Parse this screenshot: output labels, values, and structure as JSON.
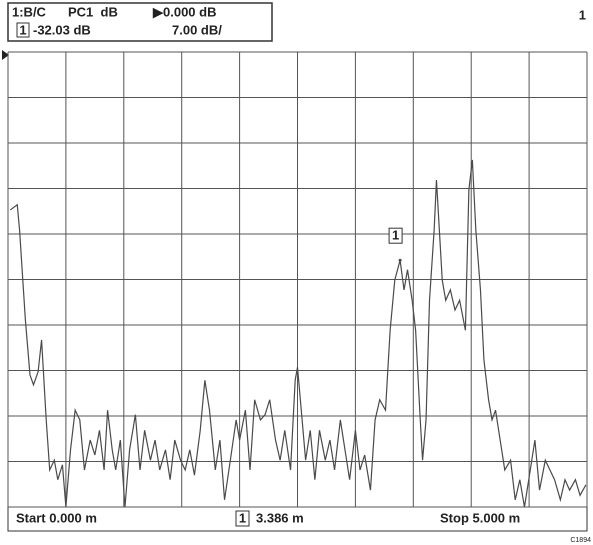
{
  "chart_data": {
    "type": "line",
    "header": {
      "channel": "1:B/C",
      "format": "PC1  dB",
      "reference": "▶0.000 dB",
      "marker_value": "-32.03 dB",
      "scale": "7.00 dB/"
    },
    "window_number": "1",
    "start": "Start 0.000 m",
    "marker_position": "3.386 m",
    "stop": "Stop 5.000 m",
    "figure_id": "C1894",
    "marker": {
      "label": "1",
      "x": 3.386,
      "value": -32.03
    },
    "color": "#4a4a4a",
    "grid": true,
    "xlim": [
      0,
      5
    ],
    "ylim": [
      -70,
      0
    ],
    "xticks": [
      0,
      0.5,
      1,
      1.5,
      2,
      2.5,
      3,
      3.5,
      4,
      4.5,
      5
    ],
    "yticks": [
      0,
      -7,
      -14,
      -21,
      -28,
      -35,
      -42,
      -49,
      -56,
      -63,
      -70
    ],
    "x": [
      0.02,
      0.08,
      0.1,
      0.15,
      0.19,
      0.22,
      0.26,
      0.29,
      0.33,
      0.36,
      0.4,
      0.43,
      0.47,
      0.5,
      0.54,
      0.58,
      0.62,
      0.66,
      0.71,
      0.75,
      0.79,
      0.83,
      0.86,
      0.9,
      0.93,
      0.97,
      1.01,
      1.05,
      1.1,
      1.14,
      1.18,
      1.23,
      1.27,
      1.31,
      1.36,
      1.4,
      1.44,
      1.49,
      1.53,
      1.57,
      1.61,
      1.66,
      1.7,
      1.74,
      1.79,
      1.83,
      1.87,
      1.92,
      1.97,
      2.0,
      2.05,
      2.09,
      2.13,
      2.18,
      2.22,
      2.26,
      2.31,
      2.35,
      2.39,
      2.44,
      2.48,
      2.5,
      2.54,
      2.57,
      2.61,
      2.65,
      2.69,
      2.74,
      2.78,
      2.82,
      2.87,
      2.91,
      2.95,
      3.0,
      3.04,
      3.08,
      3.13,
      3.17,
      3.21,
      3.26,
      3.3,
      3.34,
      3.386,
      3.42,
      3.45,
      3.49,
      3.52,
      3.56,
      3.58,
      3.61,
      3.64,
      3.68,
      3.7,
      3.75,
      3.78,
      3.82,
      3.86,
      3.9,
      3.95,
      3.98,
      4.01,
      4.04,
      4.08,
      4.11,
      4.15,
      4.18,
      4.21,
      4.25,
      4.29,
      4.34,
      4.38,
      4.42,
      4.46,
      4.51,
      4.55,
      4.59,
      4.64,
      4.68,
      4.72,
      4.77,
      4.81,
      4.85,
      4.9,
      4.94,
      4.99
    ],
    "values": [
      -24.3,
      -23.5,
      -27.4,
      -41.2,
      -49.7,
      -51.2,
      -49.2,
      -44.3,
      -56.6,
      -64.3,
      -62.8,
      -65.8,
      -63.5,
      -70,
      -61.2,
      -55.1,
      -56.6,
      -64.3,
      -59.7,
      -62.0,
      -58.2,
      -64.3,
      -55.1,
      -61.2,
      -64.3,
      -59.7,
      -70,
      -61.2,
      -55.8,
      -64.3,
      -58.2,
      -62.8,
      -59.7,
      -64.3,
      -61.2,
      -65.8,
      -59.7,
      -62.8,
      -64.3,
      -61.2,
      -65.1,
      -58.2,
      -50.5,
      -55.1,
      -64.3,
      -59.7,
      -68.9,
      -62.8,
      -56.6,
      -59.7,
      -55.1,
      -64.3,
      -53.5,
      -56.6,
      -55.8,
      -53.5,
      -59.7,
      -62.8,
      -58.2,
      -64.3,
      -50.5,
      -48.5,
      -56.6,
      -62.8,
      -58.2,
      -65.8,
      -58.2,
      -62.8,
      -59.7,
      -64.3,
      -56.6,
      -61.2,
      -65.8,
      -58.2,
      -64.3,
      -62.0,
      -67.4,
      -56.6,
      -53.5,
      -55.1,
      -42.8,
      -35.1,
      -32.03,
      -36.6,
      -33.5,
      -38.2,
      -42.8,
      -56.6,
      -62.8,
      -56.6,
      -38.2,
      -27.4,
      -19.7,
      -35.1,
      -38.2,
      -36.6,
      -39.7,
      -38.2,
      -42.8,
      -21.2,
      -16.6,
      -27.4,
      -36.6,
      -47.4,
      -53.5,
      -56.6,
      -55.1,
      -59.7,
      -64.3,
      -62.8,
      -68.9,
      -65.8,
      -70,
      -64.3,
      -59.7,
      -67.4,
      -62.8,
      -64.3,
      -65.8,
      -68.9,
      -65.8,
      -67.4,
      -65.8,
      -68.2,
      -66.6
    ]
  }
}
